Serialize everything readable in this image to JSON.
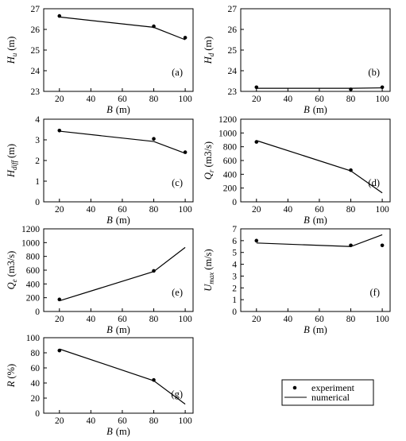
{
  "legend": {
    "experiment_label": "experiment",
    "numerical_label": "numerical"
  },
  "chart_data": [
    {
      "id": "a",
      "type": "line",
      "panel_label": "(a)",
      "ylabel": "H_u",
      "ylabel_main": "H",
      "ylabel_sub": "u",
      "ylabel_unit": "(m)",
      "xlabel_main": "B",
      "xlabel_unit": "(m)",
      "xlim": [
        10,
        105
      ],
      "ylim": [
        23,
        27
      ],
      "xticks": [
        20,
        40,
        60,
        80,
        100
      ],
      "yticks": [
        23,
        24,
        25,
        26,
        27
      ],
      "series": [
        {
          "name": "experiment",
          "x": [
            20,
            80,
            100
          ],
          "y": [
            26.65,
            26.15,
            25.6
          ]
        },
        {
          "name": "numerical",
          "x": [
            20,
            80,
            100
          ],
          "y": [
            26.6,
            26.1,
            25.5
          ]
        }
      ]
    },
    {
      "id": "b",
      "type": "line",
      "panel_label": "(b)",
      "ylabel": "H_d",
      "ylabel_main": "H",
      "ylabel_sub": "d",
      "ylabel_unit": "(m)",
      "xlabel_main": "B",
      "xlabel_unit": "(m)",
      "xlim": [
        10,
        105
      ],
      "ylim": [
        23,
        27
      ],
      "xticks": [
        20,
        40,
        60,
        80,
        100
      ],
      "yticks": [
        23,
        24,
        25,
        26,
        27
      ],
      "series": [
        {
          "name": "experiment",
          "x": [
            20,
            80,
            100
          ],
          "y": [
            23.2,
            23.1,
            23.2
          ]
        },
        {
          "name": "numerical",
          "x": [
            20,
            80,
            100
          ],
          "y": [
            23.15,
            23.15,
            23.17
          ]
        }
      ]
    },
    {
      "id": "c",
      "type": "line",
      "panel_label": "(c)",
      "ylabel": "H_diff",
      "ylabel_main": "H",
      "ylabel_sub": "diff",
      "ylabel_unit": "(m)",
      "xlabel_main": "B",
      "xlabel_unit": "(m)",
      "xlim": [
        10,
        105
      ],
      "ylim": [
        0,
        4
      ],
      "xticks": [
        20,
        40,
        60,
        80,
        100
      ],
      "yticks": [
        0,
        1,
        2,
        3,
        4
      ],
      "series": [
        {
          "name": "experiment",
          "x": [
            20,
            80,
            100
          ],
          "y": [
            3.45,
            3.05,
            2.4
          ]
        },
        {
          "name": "numerical",
          "x": [
            20,
            80,
            100
          ],
          "y": [
            3.42,
            2.92,
            2.35
          ]
        }
      ]
    },
    {
      "id": "d",
      "type": "line",
      "panel_label": "(d)",
      "ylabel": "Q_r",
      "ylabel_main": "Q",
      "ylabel_sub": "r",
      "ylabel_unit": "(m3/s)",
      "xlabel_main": "B",
      "xlabel_unit": "(m)",
      "xlim": [
        10,
        105
      ],
      "ylim": [
        0,
        1200
      ],
      "xticks": [
        20,
        40,
        60,
        80,
        100
      ],
      "yticks": [
        0,
        200,
        400,
        600,
        800,
        1000,
        1200
      ],
      "series": [
        {
          "name": "experiment",
          "x": [
            20,
            80
          ],
          "y": [
            870,
            460
          ]
        },
        {
          "name": "numerical",
          "x": [
            20,
            80,
            100
          ],
          "y": [
            890,
            450,
            130
          ]
        }
      ]
    },
    {
      "id": "e",
      "type": "line",
      "panel_label": "(e)",
      "ylabel": "Q_e",
      "ylabel_main": "Q",
      "ylabel_sub": "e",
      "ylabel_unit": "(m3/s)",
      "xlabel_main": "B",
      "xlabel_unit": "(m)",
      "xlim": [
        10,
        105
      ],
      "ylim": [
        0,
        1200
      ],
      "xticks": [
        20,
        40,
        60,
        80,
        100
      ],
      "yticks": [
        0,
        200,
        400,
        600,
        800,
        1000,
        1200
      ],
      "series": [
        {
          "name": "experiment",
          "x": [
            20,
            80
          ],
          "y": [
            175,
            590
          ]
        },
        {
          "name": "numerical",
          "x": [
            20,
            80,
            100
          ],
          "y": [
            155,
            580,
            930
          ]
        }
      ]
    },
    {
      "id": "f",
      "type": "line",
      "panel_label": "(f)",
      "ylabel": "U_max",
      "ylabel_main": "U",
      "ylabel_sub": "max",
      "ylabel_unit": "(m/s)",
      "xlabel_main": "B",
      "xlabel_unit": "(m)",
      "xlim": [
        10,
        105
      ],
      "ylim": [
        0,
        7
      ],
      "xticks": [
        20,
        40,
        60,
        80,
        100
      ],
      "yticks": [
        0,
        1,
        2,
        3,
        4,
        5,
        6,
        7
      ],
      "series": [
        {
          "name": "experiment",
          "x": [
            20,
            80,
            100
          ],
          "y": [
            6.0,
            5.6,
            5.6
          ]
        },
        {
          "name": "numerical",
          "x": [
            20,
            80,
            100
          ],
          "y": [
            5.8,
            5.5,
            6.5
          ]
        }
      ]
    },
    {
      "id": "g",
      "type": "line",
      "panel_label": "(g)",
      "ylabel": "R",
      "ylabel_main": "R",
      "ylabel_sub": "",
      "ylabel_unit": "(%)",
      "xlabel_main": "B",
      "xlabel_unit": "(m)",
      "xlim": [
        10,
        105
      ],
      "ylim": [
        0,
        100
      ],
      "xticks": [
        20,
        40,
        60,
        80,
        100
      ],
      "yticks": [
        0,
        20,
        40,
        60,
        80,
        100
      ],
      "series": [
        {
          "name": "experiment",
          "x": [
            20,
            80
          ],
          "y": [
            83,
            44
          ]
        },
        {
          "name": "numerical",
          "x": [
            20,
            80,
            100
          ],
          "y": [
            85,
            43,
            12
          ]
        }
      ]
    }
  ]
}
